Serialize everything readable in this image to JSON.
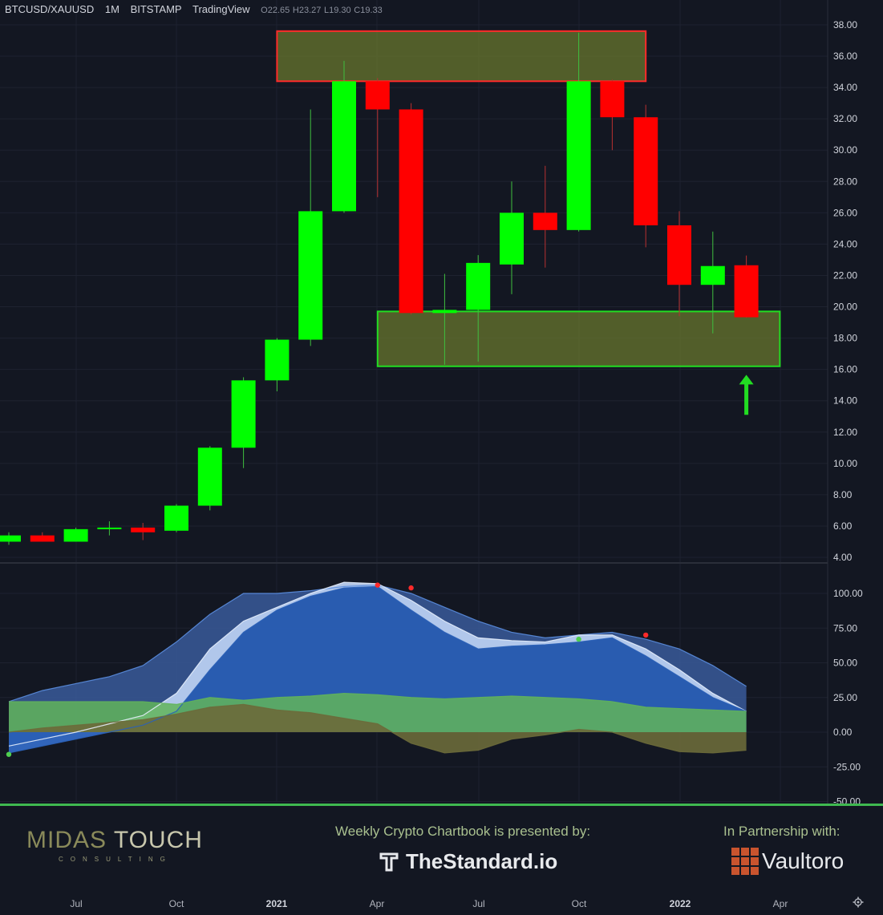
{
  "header": {
    "symbol": "BTCUSD/XAUUSD",
    "interval": "1M",
    "exchange": "BITSTAMP",
    "platform": "TradingView",
    "open": "O22.65",
    "high": "H23.27",
    "low": "L19.30",
    "close": "C19.33"
  },
  "colors": {
    "background": "#131722",
    "up": "#00ff00",
    "down": "#ff0000",
    "grid": "#1e2230"
  },
  "chart_data": [
    {
      "type": "candlestick",
      "title": "",
      "ylim": [
        4,
        38
      ],
      "y_ticks": [
        "4.00",
        "6.00",
        "8.00",
        "10.00",
        "12.00",
        "14.00",
        "16.00",
        "18.00",
        "20.00",
        "22.00",
        "24.00",
        "26.00",
        "28.00",
        "30.00",
        "32.00",
        "34.00",
        "36.00",
        "38.00"
      ],
      "x_ticks": [
        "Jul",
        "Oct",
        "2021",
        "Apr",
        "Jul",
        "Oct",
        "2022",
        "Apr"
      ],
      "candles": [
        {
          "month": "2020-05",
          "open": 5.0,
          "high": 5.6,
          "low": 4.8,
          "close": 5.4
        },
        {
          "month": "2020-06",
          "open": 5.4,
          "high": 5.6,
          "low": 5.0,
          "close": 5.0
        },
        {
          "month": "2020-07",
          "open": 5.0,
          "high": 5.9,
          "low": 5.0,
          "close": 5.8
        },
        {
          "month": "2020-08",
          "open": 5.8,
          "high": 6.3,
          "low": 5.4,
          "close": 5.9
        },
        {
          "month": "2020-09",
          "open": 5.9,
          "high": 6.2,
          "low": 5.1,
          "close": 5.6
        },
        {
          "month": "2020-10",
          "open": 5.7,
          "high": 7.4,
          "low": 5.6,
          "close": 7.3
        },
        {
          "month": "2020-11",
          "open": 7.3,
          "high": 11.1,
          "low": 7.0,
          "close": 11.0
        },
        {
          "month": "2020-12",
          "open": 11.0,
          "high": 15.5,
          "low": 9.7,
          "close": 15.3
        },
        {
          "month": "2021-01",
          "open": 15.3,
          "high": 18.0,
          "low": 14.6,
          "close": 17.9
        },
        {
          "month": "2021-02",
          "open": 17.9,
          "high": 32.6,
          "low": 17.5,
          "close": 26.1
        },
        {
          "month": "2021-03",
          "open": 26.1,
          "high": 35.7,
          "low": 26.0,
          "close": 34.4
        },
        {
          "month": "2021-04",
          "open": 34.4,
          "high": 34.6,
          "low": 27.0,
          "close": 32.6
        },
        {
          "month": "2021-05",
          "open": 32.6,
          "high": 33.0,
          "low": 19.5,
          "close": 19.6
        },
        {
          "month": "2021-06",
          "open": 19.6,
          "high": 22.1,
          "low": 16.3,
          "close": 19.8
        },
        {
          "month": "2021-07",
          "open": 19.8,
          "high": 23.3,
          "low": 16.5,
          "close": 22.8
        },
        {
          "month": "2021-08",
          "open": 22.7,
          "high": 28.0,
          "low": 20.8,
          "close": 26.0
        },
        {
          "month": "2021-09",
          "open": 26.0,
          "high": 29.0,
          "low": 22.5,
          "close": 24.9
        },
        {
          "month": "2021-10",
          "open": 24.9,
          "high": 37.5,
          "low": 24.8,
          "close": 34.4
        },
        {
          "month": "2021-11",
          "open": 34.4,
          "high": 34.5,
          "low": 30.0,
          "close": 32.1
        },
        {
          "month": "2021-12",
          "open": 32.1,
          "high": 32.9,
          "low": 23.8,
          "close": 25.2
        },
        {
          "month": "2022-01",
          "open": 25.2,
          "high": 26.1,
          "low": 19.4,
          "close": 21.4
        },
        {
          "month": "2022-02",
          "open": 21.4,
          "high": 24.8,
          "low": 18.3,
          "close": 22.6
        },
        {
          "month": "2022-03",
          "open": 22.65,
          "high": 23.27,
          "low": 19.3,
          "close": 19.33
        }
      ],
      "zones": [
        {
          "type": "resistance",
          "from": "2021-01",
          "to": "2021-12",
          "y_low": 34.4,
          "y_high": 37.6,
          "border": "#ff2a2a"
        },
        {
          "type": "support",
          "from": "2021-04",
          "to": "2022-04",
          "y_low": 16.2,
          "y_high": 19.7,
          "border": "#22dd22"
        }
      ],
      "annotation": {
        "type": "arrow-up",
        "month": "2022-03",
        "y_from": 13.1,
        "y_to": 15.5,
        "color": "#22dd22"
      }
    },
    {
      "type": "area",
      "title": "",
      "ylim": [
        -50,
        115
      ],
      "y_ticks": [
        "-50.00",
        "-25.00",
        "0.00",
        "25.00",
        "50.00",
        "75.00",
        "100.00"
      ],
      "months": [
        "2020-05",
        "2020-06",
        "2020-07",
        "2020-08",
        "2020-09",
        "2020-10",
        "2020-11",
        "2020-12",
        "2021-01",
        "2021-02",
        "2021-03",
        "2021-04",
        "2021-05",
        "2021-06",
        "2021-07",
        "2021-08",
        "2021-09",
        "2021-10",
        "2021-11",
        "2021-12",
        "2022-01",
        "2022-02",
        "2022-03"
      ],
      "series": [
        {
          "values": [
            22,
            30,
            35,
            40,
            48,
            65,
            85,
            100,
            100,
            102,
            105,
            106,
            100,
            90,
            80,
            72,
            68,
            70,
            72,
            67,
            60,
            48,
            33
          ],
          "color": "#3a5a9a"
        },
        {
          "values": [
            -10,
            -5,
            0,
            6,
            12,
            28,
            60,
            80,
            90,
            100,
            108,
            107,
            95,
            80,
            68,
            66,
            65,
            70,
            70,
            60,
            45,
            28,
            15
          ],
          "color": "#b8cdf0"
        },
        {
          "values": [
            -15,
            -10,
            -5,
            0,
            5,
            15,
            45,
            72,
            88,
            98,
            104,
            105,
            88,
            72,
            60,
            62,
            63,
            65,
            68,
            55,
            40,
            25,
            15
          ],
          "color": "#2a60b8"
        },
        {
          "values": [
            22,
            22,
            22,
            22,
            22,
            20,
            25,
            23,
            25,
            26,
            28,
            27,
            25,
            24,
            25,
            26,
            25,
            24,
            22,
            18,
            17,
            16,
            15
          ],
          "color": "#62b45a"
        },
        {
          "values": [
            0,
            3,
            5,
            7,
            9,
            13,
            18,
            20,
            16,
            14,
            10,
            6,
            -8,
            -15,
            -13,
            -5,
            -2,
            2,
            0,
            -8,
            -14,
            -15,
            -13
          ],
          "color": "#6b6a3a"
        }
      ],
      "markers": [
        {
          "month": "2021-04",
          "y": 106,
          "color": "#ff2a2a"
        },
        {
          "month": "2021-05",
          "y": 104,
          "color": "#ff2a2a"
        },
        {
          "month": "2021-10",
          "y": 67,
          "color": "#4fcf4f"
        },
        {
          "month": "2021-12",
          "y": 70,
          "color": "#ff2a2a"
        },
        {
          "month": "2020-05",
          "y": -16,
          "color": "#4fcf4f"
        }
      ]
    }
  ],
  "footer": {
    "brand_part1": "MIDAS",
    "brand_part2": "TOUCH",
    "brand_sub": "CONSULTING",
    "presented_by": "Weekly Crypto Chartbook is presented by:",
    "sponsor": "TheStandard.io",
    "partnership": "In Partnership with:",
    "partner": "Vaultoro"
  }
}
